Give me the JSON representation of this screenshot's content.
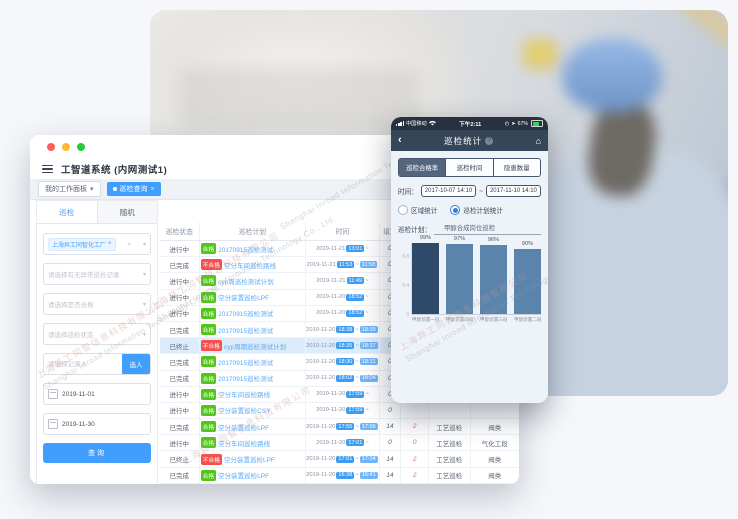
{
  "window": {
    "title": "工智道系统 (内网测试1)",
    "workspace_tabs": [
      {
        "label": "我的工作面板",
        "active": false
      },
      {
        "label": "巡检查询",
        "active": true
      }
    ],
    "sidebar": {
      "tabs": [
        {
          "label": "巡检",
          "active": true
        },
        {
          "label": "随机",
          "active": false
        }
      ],
      "factory_tag": "上海异工同智化工厂",
      "selects": [
        "请选择有无异常巡检记录",
        "请选择是否合格",
        "请选择巡检状态"
      ],
      "person_placeholder": "请选择记录人",
      "pick_person_button": "选人",
      "date_from": "2019-11-01",
      "date_to": "2019-11-30",
      "search_button": "查询"
    },
    "table": {
      "headers": [
        "巡检状态",
        "巡检计划",
        "时间",
        "填写",
        "",
        "",
        ""
      ],
      "time_separator": "~",
      "rows": [
        {
          "status": "进行中",
          "result": "合格",
          "plan": "20170915巡检测试",
          "date": "2019-11-21",
          "start": "13:01",
          "end": "",
          "n1": "0",
          "n2": "",
          "type": "",
          "group": "",
          "highlight": false,
          "extra_chip": false
        },
        {
          "status": "已完成",
          "result": "不合格",
          "plan": "空分车间巡检路线",
          "date": "2019-11-21",
          "start": "11:53",
          "end": "11:58",
          "n1": "0",
          "n2": "",
          "type": "",
          "group": "",
          "highlight": false,
          "extra_chip": false
        },
        {
          "status": "进行中",
          "result": "合格",
          "plan": "cyp周巡检测试计划",
          "date": "2019-11-21",
          "start": "11:49",
          "end": "",
          "n1": "0",
          "n2": "",
          "type": "",
          "group": "",
          "highlight": false,
          "extra_chip": false
        },
        {
          "status": "进行中",
          "result": "合格",
          "plan": "空分装置巡检LPF",
          "date": "2019-11-20",
          "start": "18:52",
          "end": "",
          "n1": "0",
          "n2": "",
          "type": "",
          "group": "",
          "highlight": false,
          "extra_chip": false
        },
        {
          "status": "进行中",
          "result": "合格",
          "plan": "20170915巡检测试",
          "date": "2019-11-20",
          "start": "18:52",
          "end": "",
          "n1": "0",
          "n2": "",
          "type": "",
          "group": "",
          "highlight": false,
          "extra_chip": false
        },
        {
          "status": "已完成",
          "result": "合格",
          "plan": "20170915巡检测试",
          "date": "2019-11-20",
          "start": "18:38",
          "end": "18:39",
          "n1": "0",
          "n2": "",
          "type": "",
          "group": "",
          "highlight": false,
          "extra_chip": false
        },
        {
          "status": "已终止",
          "result": "不合格",
          "plan": "cyp周期巡检测试计划",
          "date": "2019-11-20",
          "start": "18:35",
          "end": "18:37",
          "n1": "0",
          "n2": "",
          "type": "",
          "group": "",
          "highlight": true,
          "extra_chip": false
        },
        {
          "status": "已完成",
          "result": "合格",
          "plan": "20170915巡检测试",
          "date": "2019-11-20",
          "start": "18:30",
          "end": "18:31",
          "n1": "0",
          "n2": "",
          "type": "",
          "group": "",
          "highlight": false,
          "extra_chip": false
        },
        {
          "status": "已完成",
          "result": "合格",
          "plan": "20170915巡检测试",
          "date": "2019-11-20",
          "start": "18:02",
          "end": "18:04",
          "n1": "0",
          "n2": "",
          "type": "",
          "group": "",
          "highlight": false,
          "extra_chip": false
        },
        {
          "status": "进行中",
          "result": "合格",
          "plan": "空分车间巡检路线",
          "date": "2019-11-20",
          "start": "17:59",
          "end": "",
          "n1": "0",
          "n2": "",
          "type": "",
          "group": "",
          "highlight": false,
          "extra_chip": false
        },
        {
          "status": "进行中",
          "result": "合格",
          "plan": "空分装置巡检CSY",
          "date": "2019-11-20",
          "start": "17:59",
          "end": "",
          "n1": "0",
          "n2": "",
          "type": "",
          "group": "",
          "highlight": false,
          "extra_chip": false
        },
        {
          "status": "已完成",
          "result": "合格",
          "plan": "空分装置巡检LPF",
          "date": "2019-11-20",
          "start": "17:55",
          "end": "17:56",
          "n1": "14",
          "n2": "2",
          "type": "工艺巡检",
          "group": "阀类",
          "highlight": false,
          "extra_chip": false
        },
        {
          "status": "进行中",
          "result": "合格",
          "plan": "空分车间巡检路线",
          "date": "2019-11-20",
          "start": "17:01",
          "end": "",
          "n1": "0",
          "n2": "0",
          "type": "工艺巡检",
          "group": "气化工段",
          "highlight": false,
          "extra_chip": false
        },
        {
          "status": "已终止",
          "result": "不合格",
          "plan": "空分装置巡检LPF",
          "date": "2019-11-20",
          "start": "17:01",
          "end": "17:04",
          "n1": "14",
          "n2": "2",
          "type": "工艺巡检",
          "group": "阀类",
          "highlight": false,
          "extra_chip": false
        },
        {
          "status": "已完成",
          "result": "合格",
          "plan": "空分装置巡检LPF",
          "date": "2019-11-20",
          "start": "16:38",
          "end": "16:41",
          "n1": "14",
          "n2": "2",
          "type": "工艺巡检",
          "group": "阀类",
          "highlight": false,
          "extra_chip": false
        },
        {
          "status": "已终止",
          "result": "不合格",
          "plan": "空分装置巡检LPF",
          "date": "2019-11-20",
          "start": "14:48",
          "end": "14:55",
          "n1": "14",
          "n2": "2",
          "type": "工艺巡检",
          "group": "阀类",
          "highlight": false,
          "extra_chip": true
        }
      ]
    }
  },
  "phone": {
    "status_bar": {
      "carrier": "中国移动",
      "time": "下午2:11",
      "battery": "67%"
    },
    "nav": {
      "title": "巡检统计",
      "help_badge": "?"
    },
    "segments": [
      {
        "label": "巡检合格率",
        "active": true
      },
      {
        "label": "巡检时间",
        "active": false
      },
      {
        "label": "隐患数量",
        "active": false
      }
    ],
    "time_label": "时间：",
    "time_from": "2017-10-07 14:10",
    "time_separator": "~",
    "time_to": "2017-11-10 14:10",
    "radios": [
      {
        "label": "区域统计",
        "checked": false
      },
      {
        "label": "巡检计划统计",
        "checked": true
      }
    ],
    "plan_label": "巡检计划：",
    "plan_value": "甲醇合成岗位巡检"
  },
  "chart_data": {
    "type": "bar",
    "title": "",
    "xlabel": "",
    "ylabel": "",
    "categories": [
      "甲醇装置一班",
      "甲醇装置四班",
      "甲醇装置三班",
      "甲醇装置二班"
    ],
    "values": [
      99,
      97,
      96,
      90
    ],
    "value_labels": [
      "99%",
      "97%",
      "96%",
      "90%"
    ],
    "ylim": [
      0,
      1.0
    ],
    "ytick_labels": [
      "0.8",
      "0.4",
      "0"
    ],
    "yticks": [
      0.8,
      0.4,
      0
    ],
    "grid": false,
    "legend": false,
    "bar_colors": [
      "#2e4a68",
      "#5b84ad",
      "#5b84ad",
      "#5b84ad"
    ]
  },
  "watermark": {
    "cn": "上海异工同智信息科技有限公司",
    "en": "Shanghai Inroad Information Technology Co., Ltd."
  },
  "colors": {
    "accent_blue": "#409eff",
    "badge_green": "#52c41a",
    "badge_red": "#f5504e",
    "time_badge_blue": "#3d9df5",
    "phone_nav": "#364659",
    "bar_dark": "#2e4a68",
    "bar_light": "#5b84ad"
  }
}
